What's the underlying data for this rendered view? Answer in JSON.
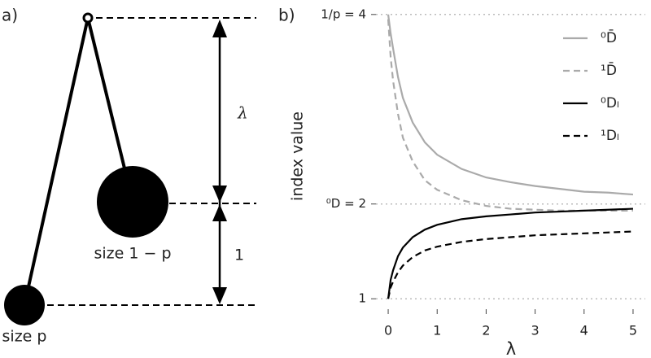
{
  "diagram": {
    "panel_label": "a)",
    "lambda_label": "λ",
    "one_label": "1",
    "big_label": "size 1 − p",
    "small_label": "size p"
  },
  "chart_data": {
    "type": "line",
    "panel_label": "b)",
    "ylabel": "index value",
    "xlabel": "λ",
    "x": [
      0,
      0.05,
      0.1,
      0.2,
      0.3,
      0.5,
      0.75,
      1,
      1.5,
      2,
      2.5,
      3,
      3.5,
      4,
      4.5,
      5
    ],
    "series": [
      {
        "name": "⁰D̄",
        "color": "#aaaaaa",
        "dash": false,
        "values": [
          4,
          3.8,
          3.64,
          3.34,
          3.12,
          2.86,
          2.65,
          2.52,
          2.37,
          2.28,
          2.23,
          2.19,
          2.16,
          2.13,
          2.12,
          2.1
        ]
      },
      {
        "name": "¹D̄",
        "color": "#aaaaaa",
        "dash": true,
        "values": [
          3.95,
          3.55,
          3.3,
          2.95,
          2.7,
          2.45,
          2.25,
          2.15,
          2.04,
          1.98,
          1.95,
          1.94,
          1.93,
          1.93,
          1.93,
          1.93
        ]
      },
      {
        "name": "⁰Dₗ",
        "color": "#000000",
        "dash": false,
        "values": [
          1,
          1.2,
          1.3,
          1.45,
          1.54,
          1.65,
          1.73,
          1.78,
          1.84,
          1.87,
          1.89,
          1.91,
          1.92,
          1.93,
          1.94,
          1.95
        ]
      },
      {
        "name": "¹Dₗ",
        "color": "#000000",
        "dash": true,
        "values": [
          1,
          1.12,
          1.18,
          1.28,
          1.35,
          1.44,
          1.51,
          1.55,
          1.6,
          1.63,
          1.65,
          1.67,
          1.68,
          1.69,
          1.7,
          1.71
        ]
      }
    ],
    "xlim": [
      -0.25,
      5.25
    ],
    "xticks": [
      0,
      1,
      2,
      3,
      4,
      5
    ],
    "ylim": [
      0.89,
      4.11
    ],
    "yticks": [
      1,
      {
        "value": 2,
        "label": "⁰D = 2"
      },
      {
        "value": 4,
        "label": "1/p = 4"
      }
    ],
    "grid": true
  }
}
